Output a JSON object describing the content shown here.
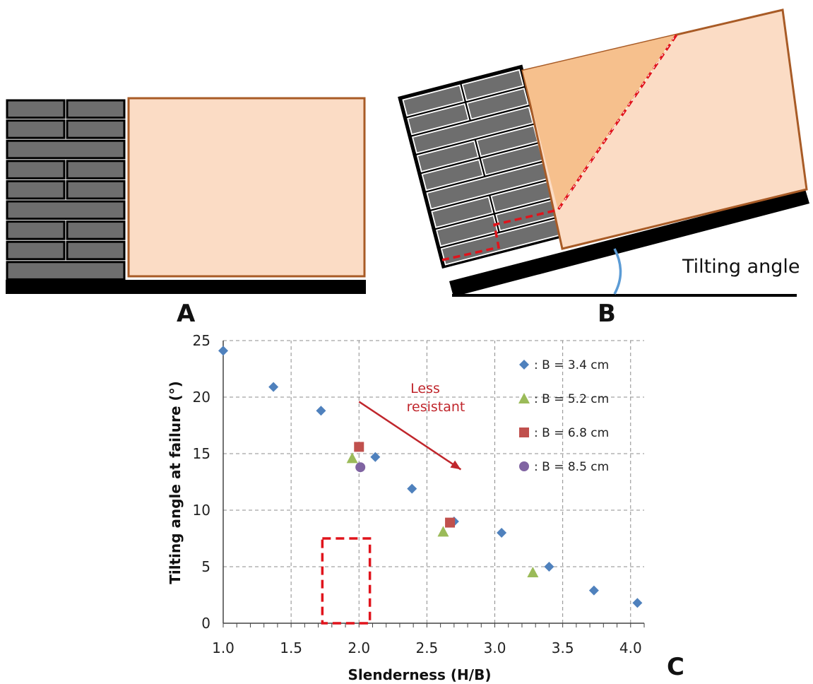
{
  "panels": {
    "a_label": "A",
    "b_label": "B",
    "c_label": "C"
  },
  "diagram_b": {
    "angle_label": "Tilting angle"
  },
  "colors": {
    "brick": "#6e6e6e",
    "soil": "#fbdcc5",
    "soil_wedge": "#f6c08d",
    "soil_outline": "#a85b26",
    "failure_line": "#e0141c",
    "angle_arc": "#5b9bd5",
    "annotation": "#c0262c",
    "series_34": "#4f81bd",
    "series_52": "#9bbb59",
    "series_68": "#c0504d",
    "series_85": "#8064a2"
  },
  "chart_data": {
    "type": "scatter",
    "xlabel": "Slenderness (H/B)",
    "ylabel": "Tilting angle at failure (°)",
    "xlim": [
      1.0,
      4.1
    ],
    "ylim": [
      0,
      25
    ],
    "xticks": [
      "1.0",
      "1.5",
      "2.0",
      "2.5",
      "3.0",
      "3.5",
      "4.0"
    ],
    "yticks": [
      "0",
      "5",
      "10",
      "15",
      "20",
      "25"
    ],
    "grid": true,
    "legend_position": "top-right",
    "series": [
      {
        "name": ": B = 3.4 cm",
        "marker": "diamond",
        "color": "#4f81bd",
        "points": [
          [
            1.0,
            24.1
          ],
          [
            1.37,
            20.9
          ],
          [
            1.72,
            18.8
          ],
          [
            2.12,
            14.7
          ],
          [
            2.39,
            11.9
          ],
          [
            2.7,
            9.0
          ],
          [
            3.05,
            8.0
          ],
          [
            3.4,
            5.0
          ],
          [
            3.73,
            2.9
          ],
          [
            4.05,
            1.8
          ]
        ]
      },
      {
        "name": ": B = 5.2 cm",
        "marker": "triangle",
        "color": "#9bbb59",
        "points": [
          [
            1.95,
            14.6
          ],
          [
            2.62,
            8.1
          ],
          [
            3.28,
            4.5
          ]
        ]
      },
      {
        "name": ": B = 6.8 cm",
        "marker": "square",
        "color": "#c0504d",
        "points": [
          [
            2.0,
            15.6
          ],
          [
            2.67,
            8.9
          ]
        ]
      },
      {
        "name": ": B = 8.5 cm",
        "marker": "circle",
        "color": "#8064a2",
        "points": [
          [
            2.01,
            13.8
          ]
        ]
      }
    ],
    "annotations": {
      "arrow_text_line1": "Less",
      "arrow_text_line2": "resistant",
      "arrow_from": [
        2.0,
        19.6
      ],
      "arrow_to": [
        2.75,
        13.6
      ],
      "dashed_box": {
        "x": [
          1.73,
          2.08
        ],
        "y": [
          0,
          7.5
        ]
      }
    }
  }
}
